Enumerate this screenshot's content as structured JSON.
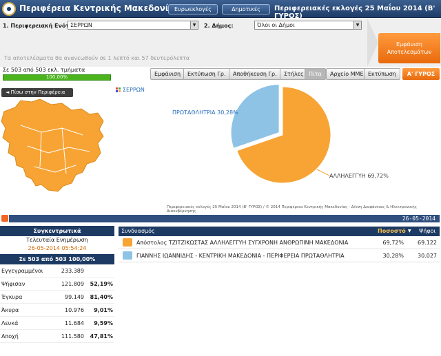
{
  "header": {
    "site_title": "Περιφέρεια Κεντρικής Μακεδονίας",
    "btn_euro": "Ευρωεκλογές",
    "btn_municipal": "Δημοτικές",
    "election_title": "Περιφερειακές εκλογές 25 Μαΐου 2014 (Β' ΓΥΡΟΣ)"
  },
  "filters": {
    "unit_label": "1. Περιφερειακή Ενότ.:",
    "unit_value": "ΣΕΡΡΩΝ",
    "municipality_label": "2. Δήμος:",
    "municipality_value": "Όλοι οι Δήμοι",
    "show_results": "Εμφάνιση Αποτελεσμάτων",
    "update_note": "Τα αποτελέσματα θα ανανεωθούν σε 1 λεπτό και 57 δευτερόλεπτα"
  },
  "progress": {
    "stations_text": "Σε 503 από 503 εκλ. τμήματα",
    "percent_text": "100,00%",
    "fraction": 1.0
  },
  "toolbar": {
    "show": "Εμφάνιση",
    "print_chart": "Εκτύπωση Γρ.",
    "save_chart": "Αποθήκευση Γρ.",
    "columns": "Στήλες",
    "pie": "Πίτα",
    "media_file": "Αρχείο ΜΜΕ",
    "print": "Εκτύπωση",
    "round": "Α' ΓΥΡΟΣ"
  },
  "map": {
    "back": "◄ Πίσω στην Περιφέρεια",
    "area_name": "ΣΕΡΡΩΝ",
    "fill_color": "#f7a434"
  },
  "chart_data": {
    "type": "pie",
    "slices": [
      {
        "label": "ΑΛΛΗΛΕΓΓΥΗ 69,72%",
        "value": 69.72,
        "color": "#f7a434"
      },
      {
        "label": "ΠΡΩΤΑΘΛΗΤΡΙΑ 30,28%",
        "value": 30.28,
        "color": "#8ec3e6"
      }
    ]
  },
  "footnote": "Περιφερειακές εκλογές 25 Μαΐου 2014 (Β' ΓΥΡΟΣ) / © 2014 Περιφέρεια Κεντρικής Μακεδονίας - Δ/νση Διαφάνειας & Ηλεκτρονικής Διακυβέρνησης",
  "date_bar": "26-05-2014",
  "summary": {
    "title": "Συγκεντρωτικά",
    "last_update_label": "Τελευταία Ενημέρωση",
    "last_update_value": "26-05-2014 05:54:24",
    "stations_line": "Σε 503 από  503   100,00%",
    "rows": [
      {
        "label": "Εγγεγραμμένοι",
        "value": "233.389",
        "pct": ""
      },
      {
        "label": "Ψήφισαν",
        "value": "121.809",
        "pct": "52,19%"
      },
      {
        "label": "Έγκυρα",
        "value": "99.149",
        "pct": "81,40%"
      },
      {
        "label": "Άκυρα",
        "value": "10.976",
        "pct": "9,01%"
      },
      {
        "label": "Λευκά",
        "value": "11.684",
        "pct": "9,59%"
      },
      {
        "label": "Αποχή",
        "value": "111.580",
        "pct": "47,81%"
      }
    ]
  },
  "results": {
    "col_combination": "Συνδυασμός",
    "col_percent": "Ποσοστό",
    "col_votes": "Ψήφοι",
    "rows": [
      {
        "name": "Απόστολος ΤΖΙΤΖΙΚΩΣΤΑΣ ΑΛΛΗΛΕΓΓΥΗ ΣΥΓΧΡΟΝΗ ΑΝΘΡΩΠΙΝΗ ΜΑΚΕΔΟΝΙΑ",
        "pct": "69,72%",
        "votes": "69.122"
      },
      {
        "name": "ΓΙΑΝΝΗΣ ΙΩΑΝΝΙΔΗΣ - ΚΕΝΤΡΙΚΗ ΜΑΚΕΔΟΝΙΑ - ΠΕΡΙΦΕΡΕΙΑ ΠΡΩΤΑΘΛΗΤΡΙΑ",
        "pct": "30,28%",
        "votes": "30.027"
      }
    ]
  }
}
